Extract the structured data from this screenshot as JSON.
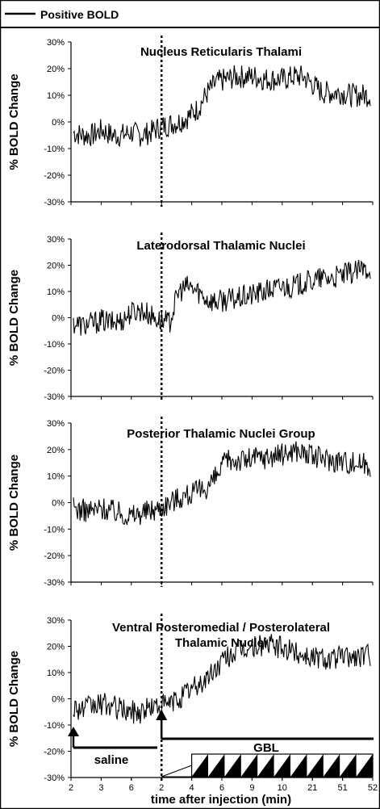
{
  "legend": {
    "label": "Positive BOLD",
    "color": "#000000"
  },
  "x_axis": {
    "title": "time after injection (min)",
    "ticks": [
      "2",
      "3",
      "6",
      "2",
      "4",
      "6",
      "9",
      "10",
      "21",
      "51",
      "52"
    ]
  },
  "annotations": {
    "saline": "saline",
    "gbl": "GBL"
  },
  "chart_data": [
    {
      "type": "line",
      "title": "Nucleus Reticularis Thalami",
      "ylabel": "% BOLD Change",
      "yticks": [
        "30%",
        "20%",
        "10%",
        "0%",
        "-10%",
        "-20%",
        "-30%"
      ],
      "ylim": [
        -30,
        30
      ],
      "injection_marker_index": 3,
      "series": [
        {
          "name": "Positive BOLD",
          "values": [
            -4,
            -5,
            -5,
            -3,
            -5,
            -5,
            -4,
            -5,
            -4,
            -2,
            -1,
            0,
            2,
            5,
            11,
            15,
            16,
            17,
            17,
            17,
            16,
            16,
            16,
            17,
            17,
            14,
            11,
            11,
            11,
            10,
            10,
            10
          ]
        }
      ]
    },
    {
      "type": "line",
      "title": "Laterodorsal Thalamic Nuclei",
      "ylabel": "% BOLD Change",
      "yticks": [
        "30%",
        "20%",
        "10%",
        "0%",
        "-10%",
        "-20%",
        "-30%"
      ],
      "ylim": [
        -30,
        30
      ],
      "injection_marker_index": 3,
      "series": [
        {
          "name": "Positive BOLD",
          "values": [
            -2,
            -3,
            -2,
            -1,
            -2,
            -1,
            2,
            3,
            1,
            -1,
            -2,
            10,
            12,
            10,
            7,
            6,
            7,
            7,
            8,
            9,
            10,
            11,
            12,
            12,
            13,
            14,
            15,
            15,
            16,
            17,
            18,
            19
          ]
        }
      ]
    },
    {
      "type": "line",
      "title": "Posterior Thalamic Nuclei Group",
      "ylabel": "% BOLD Change",
      "yticks": [
        "30%",
        "20%",
        "10%",
        "0%",
        "-10%",
        "-20%",
        "-30%"
      ],
      "ylim": [
        -30,
        30
      ],
      "injection_marker_index": 3,
      "series": [
        {
          "name": "Positive BOLD",
          "values": [
            -2,
            -3,
            -3,
            -2,
            -3,
            -4,
            -5,
            -4,
            -3,
            -2,
            0,
            2,
            3,
            4,
            6,
            10,
            16,
            16,
            16,
            17,
            17,
            18,
            18,
            20,
            19,
            17,
            17,
            16,
            16,
            15,
            15,
            14
          ]
        }
      ]
    },
    {
      "type": "line",
      "title": "Ventral Posteromedial / Posterolateral Thalamic Nuclei",
      "ylabel": "% BOLD Change",
      "yticks": [
        "30%",
        "20%",
        "10%",
        "0%",
        "-10%",
        "-20%",
        "-30%"
      ],
      "ylim": [
        -30,
        30
      ],
      "injection_marker_index": 3,
      "series": [
        {
          "name": "Positive BOLD",
          "values": [
            -3,
            -4,
            -3,
            -2,
            -3,
            -4,
            -5,
            -5,
            -3,
            -3,
            -2,
            0,
            3,
            5,
            8,
            12,
            16,
            18,
            19,
            20,
            21,
            20,
            19,
            18,
            17,
            16,
            16,
            15,
            16,
            16,
            16,
            17
          ]
        }
      ]
    }
  ]
}
